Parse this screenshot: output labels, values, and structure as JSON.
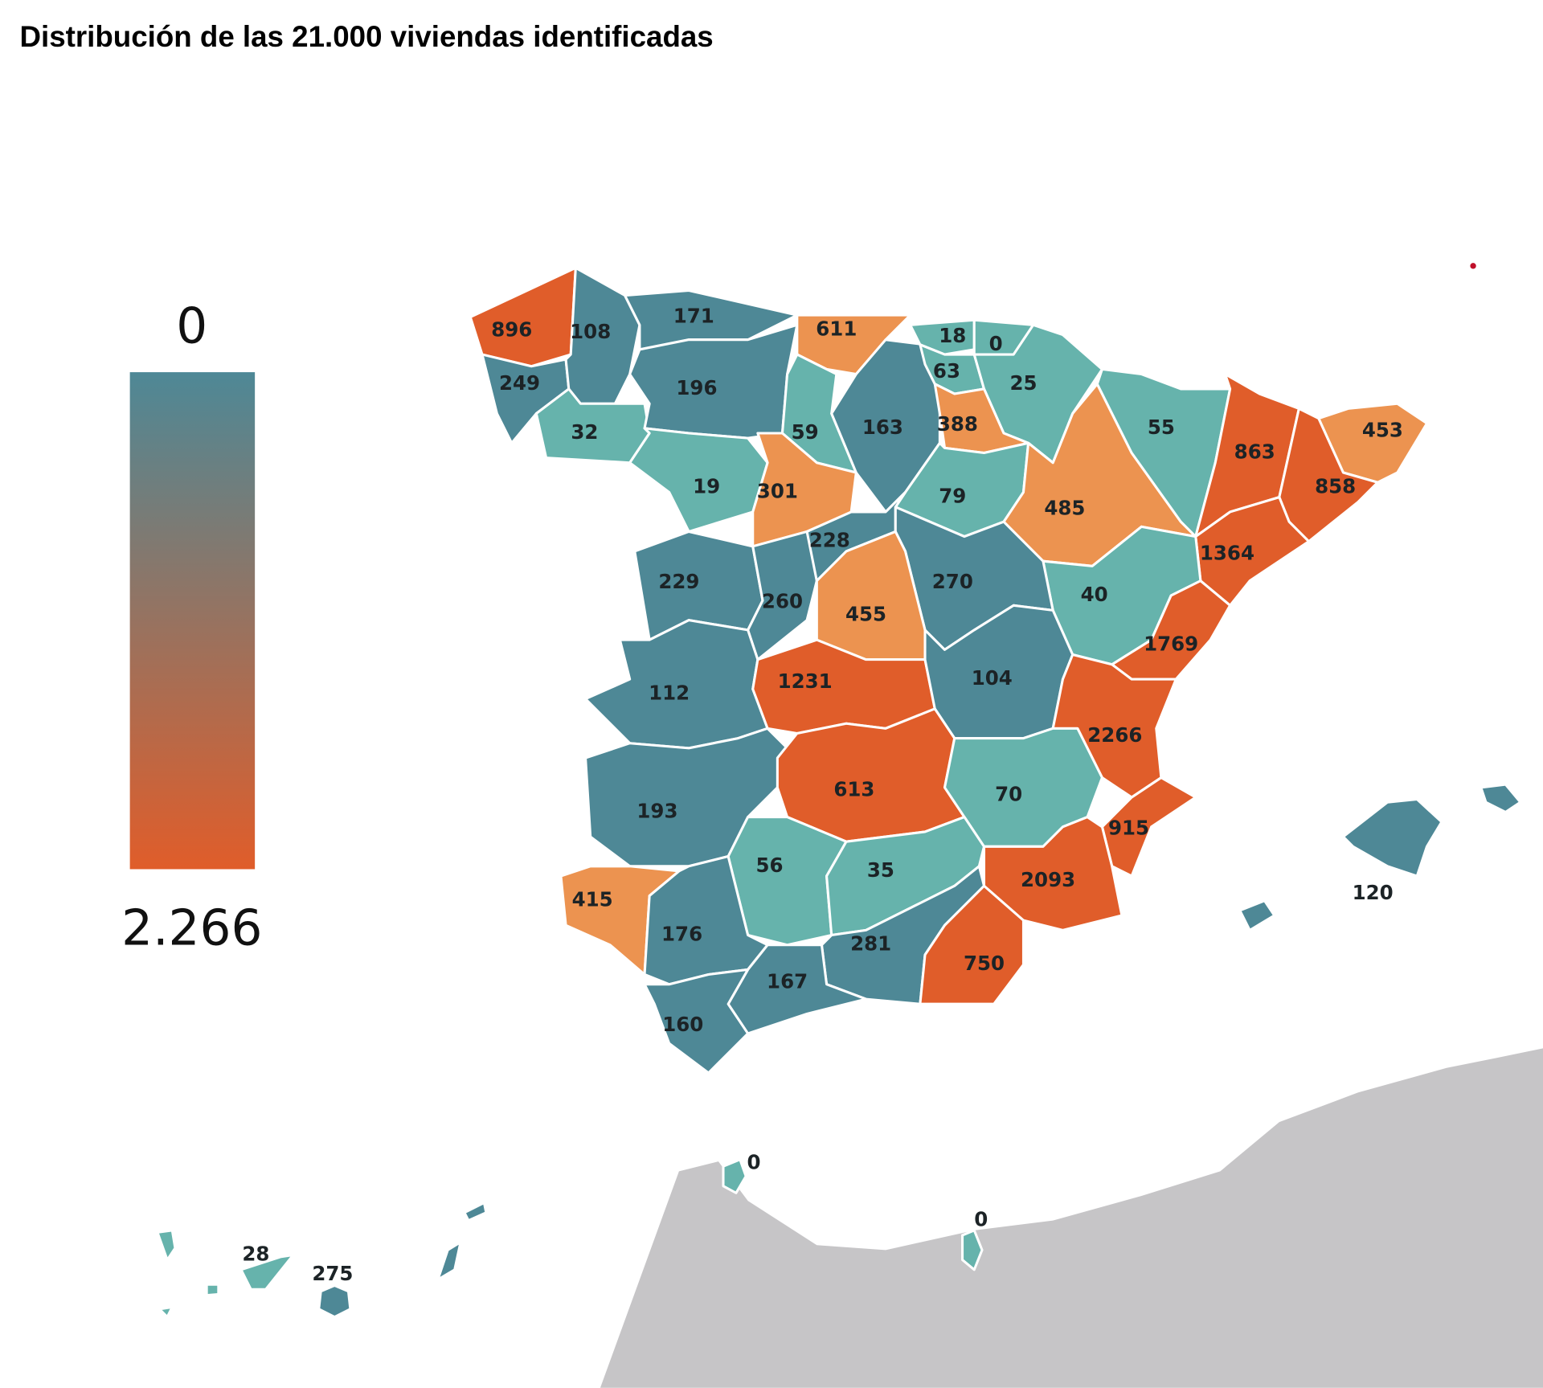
{
  "title": "Distribución de las 21.000 viviendas identificadas",
  "legend": {
    "min_label": "0",
    "max_label": "2.266",
    "min": 0,
    "max": 2266,
    "color_low": "#4e8896",
    "color_high": "#e05d2a"
  },
  "colors": {
    "dark_orange": "#e05d2a",
    "light_orange": "#ec9350",
    "dark_teal": "#4e8896",
    "light_teal": "#66b3ac",
    "africa": "#c6c5c7",
    "dot": "#c0102a"
  },
  "provinces": [
    {
      "value": "896",
      "tier": "dark_orange"
    },
    {
      "value": "249",
      "tier": "dark_teal"
    },
    {
      "value": "108",
      "tier": "dark_teal"
    },
    {
      "value": "32",
      "tier": "light_teal"
    },
    {
      "value": "171",
      "tier": "dark_teal"
    },
    {
      "value": "196",
      "tier": "dark_teal"
    },
    {
      "value": "611",
      "tier": "light_orange"
    },
    {
      "value": "59",
      "tier": "light_teal"
    },
    {
      "value": "163",
      "tier": "dark_teal"
    },
    {
      "value": "19",
      "tier": "light_teal"
    },
    {
      "value": "301",
      "tier": "light_orange"
    },
    {
      "value": "18",
      "tier": "light_teal"
    },
    {
      "value": "0",
      "tier": "light_teal"
    },
    {
      "value": "63",
      "tier": "light_teal"
    },
    {
      "value": "25",
      "tier": "light_teal"
    },
    {
      "value": "388",
      "tier": "light_orange"
    },
    {
      "value": "79",
      "tier": "light_teal"
    },
    {
      "value": "485",
      "tier": "light_orange"
    },
    {
      "value": "55",
      "tier": "light_teal"
    },
    {
      "value": "863",
      "tier": "dark_orange"
    },
    {
      "value": "453",
      "tier": "light_orange"
    },
    {
      "value": "858",
      "tier": "dark_orange"
    },
    {
      "value": "1364",
      "tier": "dark_orange"
    },
    {
      "value": "40",
      "tier": "light_teal"
    },
    {
      "value": "1769",
      "tier": "dark_orange"
    },
    {
      "value": "228",
      "tier": "dark_teal"
    },
    {
      "value": "270",
      "tier": "dark_teal"
    },
    {
      "value": "229",
      "tier": "dark_teal"
    },
    {
      "value": "260",
      "tier": "dark_teal"
    },
    {
      "value": "455",
      "tier": "light_orange"
    },
    {
      "value": "112",
      "tier": "dark_teal"
    },
    {
      "value": "1231",
      "tier": "dark_orange"
    },
    {
      "value": "104",
      "tier": "dark_teal"
    },
    {
      "value": "2266",
      "tier": "dark_orange"
    },
    {
      "value": "193",
      "tier": "dark_teal"
    },
    {
      "value": "613",
      "tier": "dark_orange"
    },
    {
      "value": "70",
      "tier": "light_teal"
    },
    {
      "value": "915",
      "tier": "dark_orange"
    },
    {
      "value": "2093",
      "tier": "dark_orange"
    },
    {
      "value": "56",
      "tier": "light_teal"
    },
    {
      "value": "35",
      "tier": "light_teal"
    },
    {
      "value": "415",
      "tier": "light_orange"
    },
    {
      "value": "176",
      "tier": "dark_teal"
    },
    {
      "value": "281",
      "tier": "dark_teal"
    },
    {
      "value": "750",
      "tier": "dark_orange"
    },
    {
      "value": "167",
      "tier": "dark_teal"
    },
    {
      "value": "160",
      "tier": "dark_teal"
    },
    {
      "value": "120",
      "tier": "dark_teal"
    },
    {
      "value": "28",
      "tier": "light_teal"
    },
    {
      "value": "275",
      "tier": "dark_teal"
    },
    {
      "value": "0",
      "tier": "light_teal"
    },
    {
      "value": "0",
      "tier": "light_teal"
    }
  ]
}
